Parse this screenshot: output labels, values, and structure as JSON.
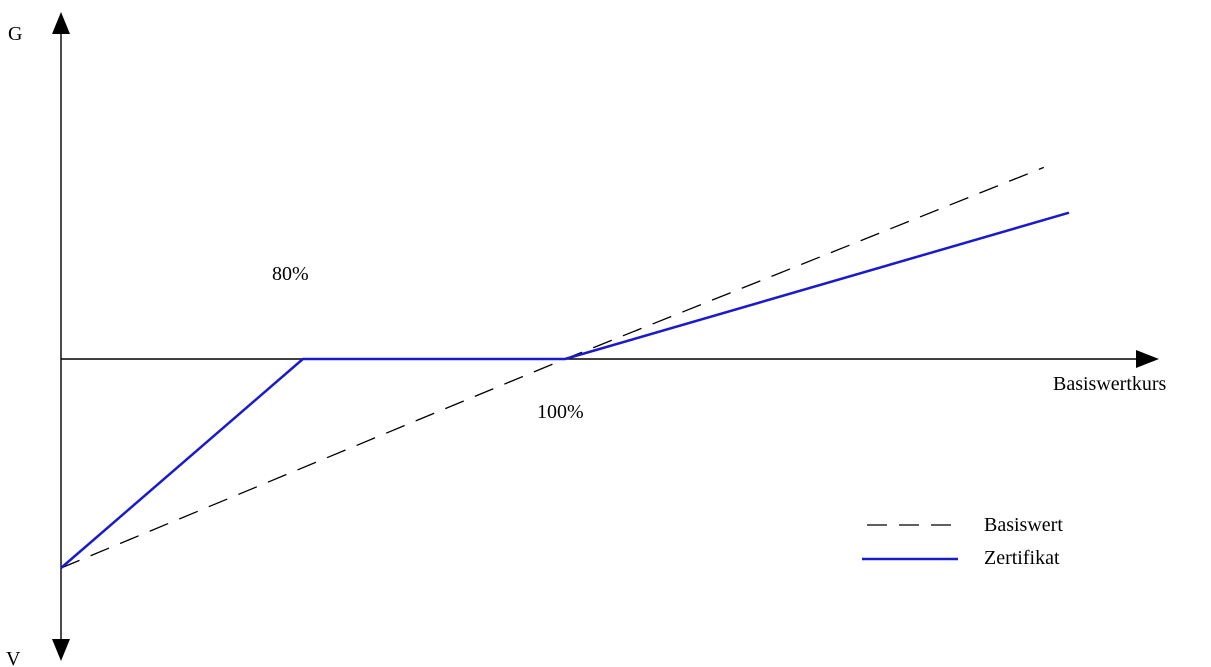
{
  "colors": {
    "axis": "#000000",
    "basiswert": "#000000",
    "zertifikat": "#1a1acc"
  },
  "chart_data": {
    "type": "line",
    "y_axis_top_label": "G",
    "y_axis_bottom_label": "V",
    "xlabel": "Basiswertkurs",
    "annotations": [
      "80%",
      "100%"
    ],
    "xlim": [
      0,
      210
    ],
    "ylim": [
      -75,
      115
    ],
    "series": [
      {
        "name": "Basiswert",
        "style": "dashed",
        "x": [
          0,
          100,
          195
        ],
        "y": [
          -60,
          0,
          55
        ]
      },
      {
        "name": "Zertifikat",
        "style": "solid",
        "x": [
          0,
          48,
          100,
          200
        ],
        "y": [
          -60,
          0,
          0,
          42
        ]
      }
    ],
    "legend": {
      "position": "bottom-right",
      "entries": [
        "Basiswert",
        "Zertifikat"
      ]
    }
  }
}
